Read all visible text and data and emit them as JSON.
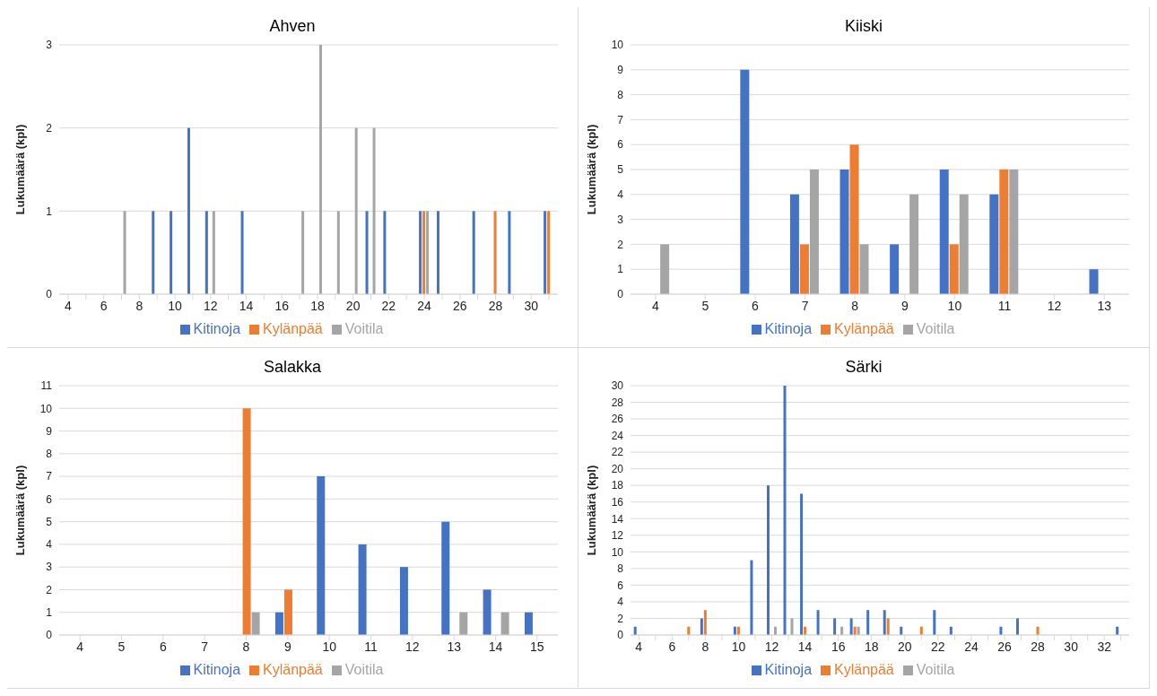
{
  "chart_data": [
    {
      "type": "bar",
      "title": "Ahven",
      "ylabel": "Lukumäärä (kpl)",
      "categories": [
        "4",
        null,
        "6",
        null,
        "8",
        null,
        "10",
        null,
        "12",
        null,
        "14",
        null,
        "16",
        null,
        "18",
        null,
        "20",
        null,
        "22",
        null,
        "24",
        null,
        "26",
        null,
        "28",
        null,
        "30",
        null
      ],
      "ylim": [
        0,
        3
      ],
      "yticks": [
        0,
        1,
        2,
        3
      ],
      "grid": "y",
      "legend": "bottom",
      "series": [
        {
          "name": "Kitinoja",
          "color": "#4472c4",
          "values": [
            0,
            0,
            0,
            0,
            0,
            1,
            1,
            2,
            1,
            0,
            1,
            0,
            0,
            0,
            0,
            0,
            0,
            1,
            1,
            0,
            1,
            1,
            0,
            1,
            0,
            1,
            0,
            1
          ]
        },
        {
          "name": "Kylänpää",
          "color": "#ed7d31",
          "values": [
            0,
            0,
            0,
            0,
            0,
            0,
            0,
            0,
            0,
            0,
            0,
            0,
            0,
            0,
            0,
            0,
            0,
            0,
            0,
            0,
            1,
            0,
            0,
            0,
            1,
            0,
            0,
            1
          ]
        },
        {
          "name": "Voitila",
          "color": "#a5a5a5",
          "values": [
            0,
            0,
            0,
            1,
            0,
            0,
            0,
            0,
            1,
            0,
            0,
            0,
            0,
            1,
            3,
            1,
            2,
            2,
            0,
            0,
            1,
            0,
            0,
            0,
            0,
            0,
            0,
            0
          ]
        }
      ]
    },
    {
      "type": "bar",
      "title": "Kiiski",
      "ylabel": "Lukumäärä (kpl)",
      "categories": [
        "4",
        "5",
        "6",
        "7",
        "8",
        "9",
        "10",
        "11",
        "12",
        "13"
      ],
      "ylim": [
        0,
        10
      ],
      "yticks": [
        0,
        1,
        2,
        3,
        4,
        5,
        6,
        7,
        8,
        9,
        10
      ],
      "grid": "y",
      "legend": "bottom",
      "series": [
        {
          "name": "Kitinoja",
          "color": "#4472c4",
          "values": [
            0,
            0,
            9,
            4,
            5,
            2,
            5,
            4,
            0,
            1
          ]
        },
        {
          "name": "Kylänpää",
          "color": "#ed7d31",
          "values": [
            0,
            0,
            0,
            2,
            6,
            0,
            2,
            5,
            0,
            0
          ]
        },
        {
          "name": "Voitila",
          "color": "#a5a5a5",
          "values": [
            2,
            0,
            0,
            5,
            2,
            4,
            4,
            5,
            0,
            0
          ]
        }
      ]
    },
    {
      "type": "bar",
      "title": "Salakka",
      "ylabel": "Lukumäärä (kpl)",
      "categories": [
        "4",
        "5",
        "6",
        "7",
        "8",
        "9",
        "10",
        "11",
        "12",
        "13",
        "14",
        "15"
      ],
      "ylim": [
        0,
        11
      ],
      "yticks": [
        0,
        1,
        2,
        3,
        4,
        5,
        6,
        7,
        8,
        9,
        10,
        11
      ],
      "grid": "y",
      "legend": "bottom",
      "series": [
        {
          "name": "Kitinoja",
          "color": "#4472c4",
          "values": [
            0,
            0,
            0,
            0,
            0,
            1,
            7,
            4,
            3,
            5,
            2,
            1
          ]
        },
        {
          "name": "Kylänpää",
          "color": "#ed7d31",
          "values": [
            0,
            0,
            0,
            0,
            10,
            2,
            0,
            0,
            0,
            0,
            0,
            0
          ]
        },
        {
          "name": "Voitila",
          "color": "#a5a5a5",
          "values": [
            0,
            0,
            0,
            0,
            1,
            0,
            0,
            0,
            0,
            1,
            1,
            0
          ]
        }
      ]
    },
    {
      "type": "bar",
      "title": "Särki",
      "ylabel": "Lukumäärä (kpl)",
      "categories": [
        "4",
        null,
        "6",
        null,
        "8",
        null,
        "10",
        null,
        "12",
        null,
        "14",
        null,
        "16",
        null,
        "18",
        null,
        "20",
        null,
        "22",
        null,
        "24",
        null,
        "26",
        null,
        "28",
        null,
        "30",
        null,
        "32",
        null
      ],
      "ylim": [
        0,
        30
      ],
      "yticks": [
        0,
        2,
        4,
        6,
        8,
        10,
        12,
        14,
        16,
        18,
        20,
        22,
        24,
        26,
        28,
        30
      ],
      "grid": "y",
      "legend": "bottom",
      "series": [
        {
          "name": "Kitinoja",
          "color": "#4472c4",
          "values": [
            1,
            0,
            0,
            0,
            2,
            0,
            1,
            9,
            18,
            30,
            17,
            3,
            2,
            2,
            3,
            3,
            1,
            0,
            3,
            1,
            0,
            0,
            1,
            2,
            0,
            0,
            0,
            0,
            0,
            1
          ]
        },
        {
          "name": "Kylänpää",
          "color": "#ed7d31",
          "values": [
            0,
            0,
            0,
            1,
            3,
            0,
            1,
            0,
            0,
            0,
            1,
            0,
            0,
            1,
            0,
            2,
            0,
            1,
            0,
            0,
            0,
            0,
            0,
            0,
            1,
            0,
            0,
            0,
            0,
            0
          ]
        },
        {
          "name": "Voitila",
          "color": "#a5a5a5",
          "values": [
            0,
            0,
            0,
            0,
            0,
            0,
            0,
            0,
            1,
            2,
            0,
            0,
            1,
            1,
            0,
            0,
            0,
            0,
            0,
            0,
            0,
            0,
            0,
            0,
            0,
            0,
            0,
            0,
            0,
            0
          ]
        }
      ]
    }
  ]
}
